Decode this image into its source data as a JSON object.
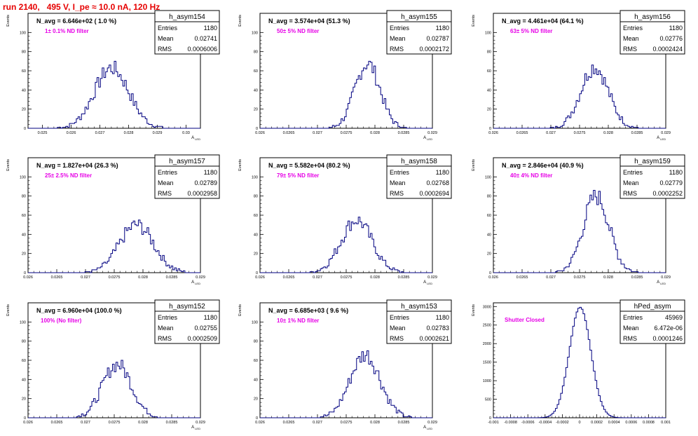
{
  "header": {
    "title": "run 2140,   495 V, I_pe ≈ 10.0 nA, 120 Hz"
  },
  "chart_data": [
    {
      "type": "bar",
      "name": "h_asym154",
      "xlim": [
        0.0245,
        0.0305
      ],
      "ylim": [
        0,
        120
      ],
      "xticks": [
        0.025,
        0.026,
        0.027,
        0.028,
        0.029,
        0.03
      ],
      "xtick_labels": [
        "0.025",
        "0.026",
        "0.027",
        "0.028",
        "0.029",
        "0.03"
      ],
      "yticks": [
        0,
        20,
        40,
        60,
        80,
        100
      ],
      "ylabel": "Events",
      "xlabel": "A_{LED}",
      "stats": [
        [
          "Entries",
          "1180"
        ],
        [
          "Mean",
          "0.02741"
        ],
        [
          "RMS",
          "0.0006006"
        ]
      ],
      "navg": "N_avg = 6.646e+02 ( 1.0 %)",
      "filter": "1± 0.1% ND filter",
      "mean": 0.02741,
      "rms": 0.0006006,
      "peak": 63
    },
    {
      "type": "bar",
      "name": "h_asym155",
      "xlim": [
        0.026,
        0.029
      ],
      "ylim": [
        0,
        120
      ],
      "xticks": [
        0.026,
        0.0265,
        0.027,
        0.0275,
        0.028,
        0.0285,
        0.029
      ],
      "xtick_labels": [
        "0.026",
        "0.0265",
        "0.027",
        "0.0275",
        "0.028",
        "0.0285",
        "0.029"
      ],
      "yticks": [
        0,
        20,
        40,
        60,
        80,
        100
      ],
      "ylabel": "Events",
      "xlabel": "A_{LED}",
      "stats": [
        [
          "Entries",
          "1180"
        ],
        [
          "Mean",
          "0.02787"
        ],
        [
          "RMS",
          "0.0002172"
        ]
      ],
      "navg": "N_avg = 3.574e+04 (51.3 %)",
      "filter": "50± 5% ND filter",
      "mean": 0.02787,
      "rms": 0.0002172,
      "peak": 68
    },
    {
      "type": "bar",
      "name": "h_asym156",
      "xlim": [
        0.026,
        0.029
      ],
      "ylim": [
        0,
        120
      ],
      "xticks": [
        0.026,
        0.0265,
        0.027,
        0.0275,
        0.028,
        0.0285,
        0.029
      ],
      "xtick_labels": [
        "0.026",
        "0.0265",
        "0.027",
        "0.0275",
        "0.028",
        "0.0285",
        "0.029"
      ],
      "yticks": [
        0,
        20,
        40,
        60,
        80,
        100
      ],
      "ylabel": "Events",
      "xlabel": "A_{LED}",
      "stats": [
        [
          "Entries",
          "1180"
        ],
        [
          "Mean",
          "0.02776"
        ],
        [
          "RMS",
          "0.0002424"
        ]
      ],
      "navg": "N_avg = 4.461e+04 (64.1 %)",
      "filter": "63± 5% ND filter",
      "mean": 0.02776,
      "rms": 0.0002424,
      "peak": 64
    },
    {
      "type": "bar",
      "name": "h_asym157",
      "xlim": [
        0.026,
        0.029
      ],
      "ylim": [
        0,
        120
      ],
      "xticks": [
        0.026,
        0.0265,
        0.027,
        0.0275,
        0.028,
        0.0285,
        0.029
      ],
      "xtick_labels": [
        "0.026",
        "0.0265",
        "0.027",
        "0.0275",
        "0.028",
        "0.0285",
        "0.029"
      ],
      "yticks": [
        0,
        20,
        40,
        60,
        80,
        100
      ],
      "ylabel": "Events",
      "xlabel": "A_{LED}",
      "stats": [
        [
          "Entries",
          "1180"
        ],
        [
          "Mean",
          "0.02789"
        ],
        [
          "RMS",
          "0.0002958"
        ]
      ],
      "navg": "N_avg = 1.827e+04 (26.3 %)",
      "filter": "25± 2.5% ND filter",
      "mean": 0.02789,
      "rms": 0.0002958,
      "peak": 50
    },
    {
      "type": "bar",
      "name": "h_asym158",
      "xlim": [
        0.026,
        0.029
      ],
      "ylim": [
        0,
        120
      ],
      "xticks": [
        0.026,
        0.0265,
        0.027,
        0.0275,
        0.028,
        0.0285,
        0.029
      ],
      "xtick_labels": [
        "0.026",
        "0.0265",
        "0.027",
        "0.0275",
        "0.028",
        "0.0285",
        "0.029"
      ],
      "yticks": [
        0,
        20,
        40,
        60,
        80,
        100
      ],
      "ylabel": "Events",
      "xlabel": "A_{LED}",
      "stats": [
        [
          "Entries",
          "1180"
        ],
        [
          "Mean",
          "0.02768"
        ],
        [
          "RMS",
          "0.0002694"
        ]
      ],
      "navg": "N_avg = 5.582e+04 (80.2 %)",
      "filter": "79± 5% ND filter",
      "mean": 0.02768,
      "rms": 0.0002694,
      "peak": 55
    },
    {
      "type": "bar",
      "name": "h_asym159",
      "xlim": [
        0.026,
        0.029
      ],
      "ylim": [
        0,
        120
      ],
      "xticks": [
        0.026,
        0.0265,
        0.027,
        0.0275,
        0.028,
        0.0285,
        0.029
      ],
      "xtick_labels": [
        "0.026",
        "0.0265",
        "0.027",
        "0.0275",
        "0.028",
        "0.0285",
        "0.029"
      ],
      "yticks": [
        0,
        20,
        40,
        60,
        80,
        100
      ],
      "ylabel": "Events",
      "xlabel": "A_{LED}",
      "stats": [
        [
          "Entries",
          "1180"
        ],
        [
          "Mean",
          "0.02779"
        ],
        [
          "RMS",
          "0.0002252"
        ]
      ],
      "navg": "N_avg = 2.846e+04 (40.9 %)",
      "filter": "40± 4% ND filter",
      "mean": 0.02779,
      "rms": 0.0002252,
      "peak": 80
    },
    {
      "type": "bar",
      "name": "h_asym152",
      "xlim": [
        0.026,
        0.029
      ],
      "ylim": [
        0,
        120
      ],
      "xticks": [
        0.026,
        0.0265,
        0.027,
        0.0275,
        0.028,
        0.0285,
        0.029
      ],
      "xtick_labels": [
        "0.026",
        "0.0265",
        "0.027",
        "0.0275",
        "0.028",
        "0.0285",
        "0.029"
      ],
      "yticks": [
        0,
        20,
        40,
        60,
        80,
        100
      ],
      "ylabel": "Events",
      "xlabel": "A_{LED}",
      "stats": [
        [
          "Entries",
          "1180"
        ],
        [
          "Mean",
          "0.02755"
        ],
        [
          "RMS",
          "0.0002509"
        ]
      ],
      "navg": "N_avg = 6.960e+04 (100.0 %)",
      "filter": "100% (No filter)",
      "mean": 0.02755,
      "rms": 0.0002509,
      "peak": 56
    },
    {
      "type": "bar",
      "name": "h_asym153",
      "xlim": [
        0.026,
        0.029
      ],
      "ylim": [
        0,
        120
      ],
      "xticks": [
        0.026,
        0.0265,
        0.027,
        0.0275,
        0.028,
        0.0285,
        0.029
      ],
      "xtick_labels": [
        "0.026",
        "0.0265",
        "0.027",
        "0.0275",
        "0.028",
        "0.0285",
        "0.029"
      ],
      "yticks": [
        0,
        20,
        40,
        60,
        80,
        100
      ],
      "ylabel": "Events",
      "xlabel": "A_{LED}",
      "stats": [
        [
          "Entries",
          "1180"
        ],
        [
          "Mean",
          "0.02783"
        ],
        [
          "RMS",
          "0.0002621"
        ]
      ],
      "navg": "N_avg = 6.685e+03 ( 9.6 %)",
      "filter": "10± 1% ND filter",
      "mean": 0.02783,
      "rms": 0.0002621,
      "peak": 66
    },
    {
      "type": "bar",
      "name": "hPed_asym",
      "xlim": [
        -0.001,
        0.001
      ],
      "ylim": [
        0,
        3100
      ],
      "xticks": [
        -0.001,
        -0.0008,
        -0.0006,
        -0.0004,
        -0.0002,
        0,
        0.0002,
        0.0004,
        0.0006,
        0.0008,
        0.001
      ],
      "xtick_labels": [
        "-0.001",
        "-0.0008",
        "-0.0006",
        "-0.0004",
        "-0.0002",
        "0",
        "0.0002",
        "0.0004",
        "0.0006",
        "0.0008",
        "0.001"
      ],
      "yticks": [
        0,
        500,
        1000,
        1500,
        2000,
        2500,
        3000
      ],
      "ylabel": "Events",
      "xlabel": "",
      "stats": [
        [
          "Entries",
          "45969"
        ],
        [
          "Mean",
          "6.472e-06"
        ],
        [
          "RMS",
          "0.0001246"
        ]
      ],
      "navg": "",
      "filter": "Shutter Closed",
      "mean": 6.472e-06,
      "rms": 0.0001246,
      "peak": 2980
    }
  ]
}
